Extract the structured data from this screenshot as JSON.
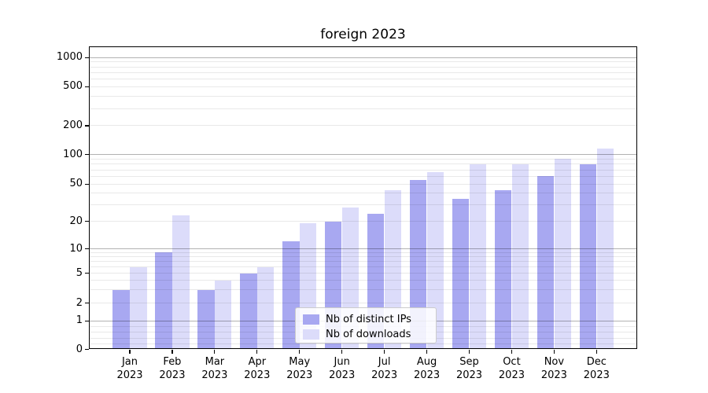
{
  "title": "foreign 2023",
  "chart_data": {
    "type": "bar",
    "title": "foreign 2023",
    "categories": [
      "Jan 2023",
      "Feb 2023",
      "Mar 2023",
      "Apr 2023",
      "May 2023",
      "Jun 2023",
      "Jul 2023",
      "Aug 2023",
      "Sep 2023",
      "Oct 2023",
      "Nov 2023",
      "Dec 2023"
    ],
    "series": [
      {
        "name": "Nb of distinct IPs",
        "color": "#a8a8f1",
        "values": [
          3,
          9,
          3,
          5,
          12,
          20,
          24,
          55,
          35,
          43,
          61,
          80
        ]
      },
      {
        "name": "Nb of downloads",
        "color": "#dcdcfa",
        "values": [
          6,
          23,
          4,
          6,
          19,
          28,
          43,
          66,
          80,
          80,
          90,
          116
        ]
      }
    ],
    "xlabel": "",
    "ylabel": "",
    "yscale": "symlog",
    "ytick_values": [
      0,
      1,
      2,
      5,
      10,
      20,
      50,
      100,
      200,
      500,
      1000
    ],
    "ylim": [
      0,
      1090
    ],
    "grid": "major-and-minor, drawn over bars",
    "legend_position": "lower center"
  },
  "colors": {
    "major_grid": "rgba(0,0,0,0.30)",
    "minor_grid": "rgba(0,0,0,0.085)",
    "axis": "#000000",
    "background": "#ffffff"
  }
}
